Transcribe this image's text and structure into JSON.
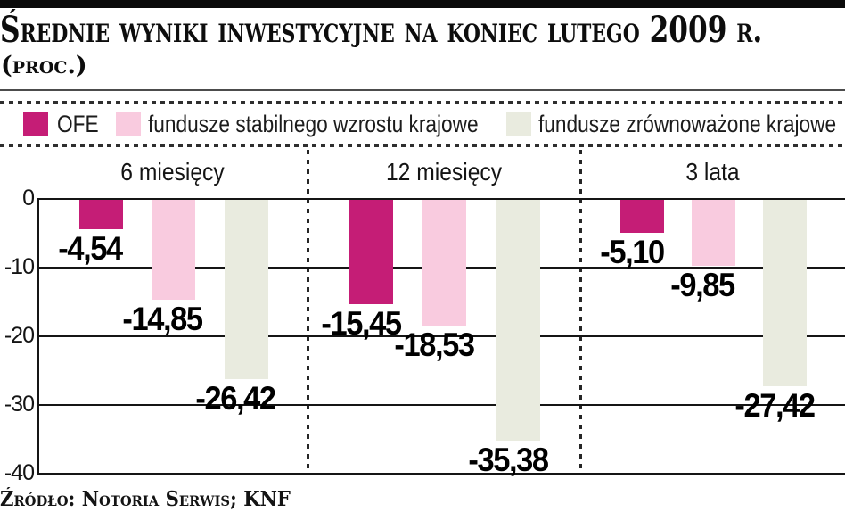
{
  "header": {
    "title": "Średnie wyniki inwestycyjne na koniec lutego 2009 r.",
    "subtitle": "(proc.)"
  },
  "source": "Źródło: Notoria Serwis; KNF",
  "colors": {
    "accent_magenta": "#c51d76",
    "light_pink": "#f9cbdf",
    "light_gray_green": "#e9ebdf",
    "grid": "#151515",
    "top_bar": "#0a0a0a"
  },
  "chart_data": {
    "type": "bar",
    "title": "Średnie wyniki inwestycyjne na koniec lutego 2009 r. (proc.)",
    "categories": [
      "6 miesięcy",
      "12 miesięcy",
      "3 lata"
    ],
    "series": [
      {
        "name": "OFE",
        "color": "#c51d76",
        "values": [
          -4.54,
          -15.45,
          -5.1
        ],
        "value_labels": [
          "-4,54",
          "-15,45",
          "-5,10"
        ]
      },
      {
        "name": "fundusze stabilnego wzrostu krajowe",
        "color": "#f9cbdf",
        "values": [
          -14.85,
          -18.53,
          -9.85
        ],
        "value_labels": [
          "-14,85",
          "-18,53",
          "-9,85"
        ]
      },
      {
        "name": "fundusze zrównoważone krajowe",
        "color": "#e9ebdf",
        "values": [
          -26.42,
          -35.38,
          -27.42
        ],
        "value_labels": [
          "-26,42",
          "-35,38",
          "-27,42"
        ]
      }
    ],
    "ylabel": "",
    "ylim": [
      -40,
      0
    ],
    "yticks": [
      0,
      -10,
      -20,
      -30,
      -40
    ],
    "ytick_labels": [
      "0",
      "-10",
      "-20",
      "-30",
      "-40"
    ],
    "grid": true,
    "legend_position": "top",
    "source": "Źródło: Notoria Serwis; KNF"
  }
}
